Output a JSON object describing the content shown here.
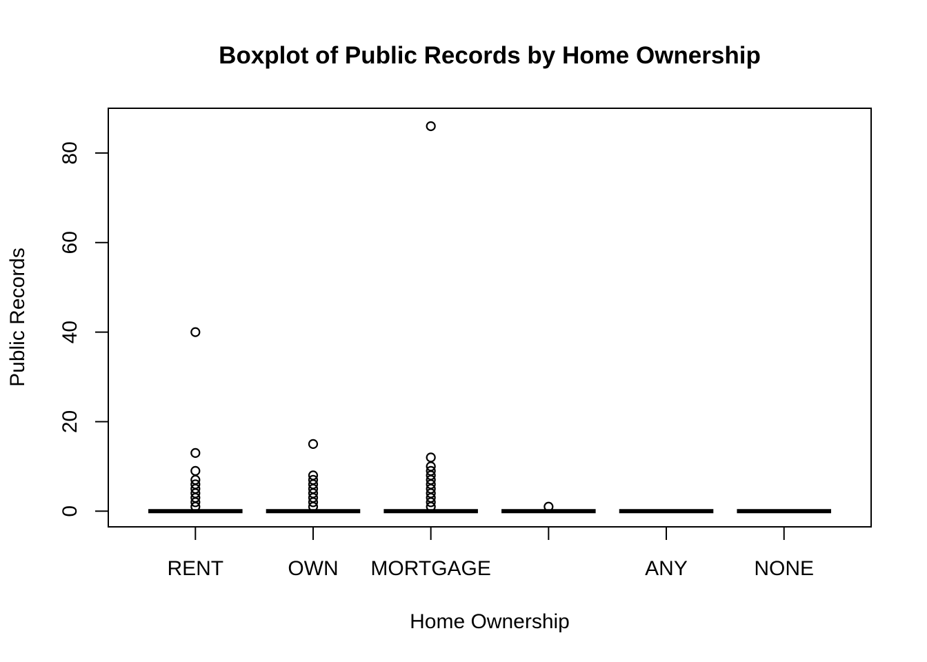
{
  "chart_data": {
    "type": "boxplot",
    "title": "Boxplot of Public Records by Home Ownership",
    "xlabel": "Home Ownership",
    "ylabel": "Public Records",
    "ylim": [
      -3.5,
      90
    ],
    "yticks": [
      0,
      20,
      40,
      60,
      80
    ],
    "grid": false,
    "legend": "none",
    "categories": [
      "RENT",
      "OWN",
      "MORTGAGE",
      "",
      "ANY",
      "NONE"
    ],
    "series": [
      {
        "category": "RENT",
        "q1": 0,
        "median": 0,
        "q3": 0,
        "whisker_low": 0,
        "whisker_high": 0,
        "outliers": [
          1,
          2,
          3,
          4,
          5,
          6,
          7,
          9,
          13,
          40
        ]
      },
      {
        "category": "OWN",
        "q1": 0,
        "median": 0,
        "q3": 0,
        "whisker_low": 0,
        "whisker_high": 0,
        "outliers": [
          1,
          2,
          3,
          4,
          5,
          6,
          7,
          8,
          15
        ]
      },
      {
        "category": "MORTGAGE",
        "q1": 0,
        "median": 0,
        "q3": 0,
        "whisker_low": 0,
        "whisker_high": 0,
        "outliers": [
          1,
          2,
          3,
          4,
          5,
          6,
          7,
          8,
          9,
          10,
          12,
          86
        ]
      },
      {
        "category": "",
        "q1": 0,
        "median": 0,
        "q3": 0,
        "whisker_low": 0,
        "whisker_high": 0,
        "outliers": [
          1
        ]
      },
      {
        "category": "ANY",
        "q1": 0,
        "median": 0,
        "q3": 0,
        "whisker_low": 0,
        "whisker_high": 0,
        "outliers": []
      },
      {
        "category": "NONE",
        "q1": 0,
        "median": 0,
        "q3": 0,
        "whisker_low": 0,
        "whisker_high": 0,
        "outliers": []
      }
    ]
  }
}
